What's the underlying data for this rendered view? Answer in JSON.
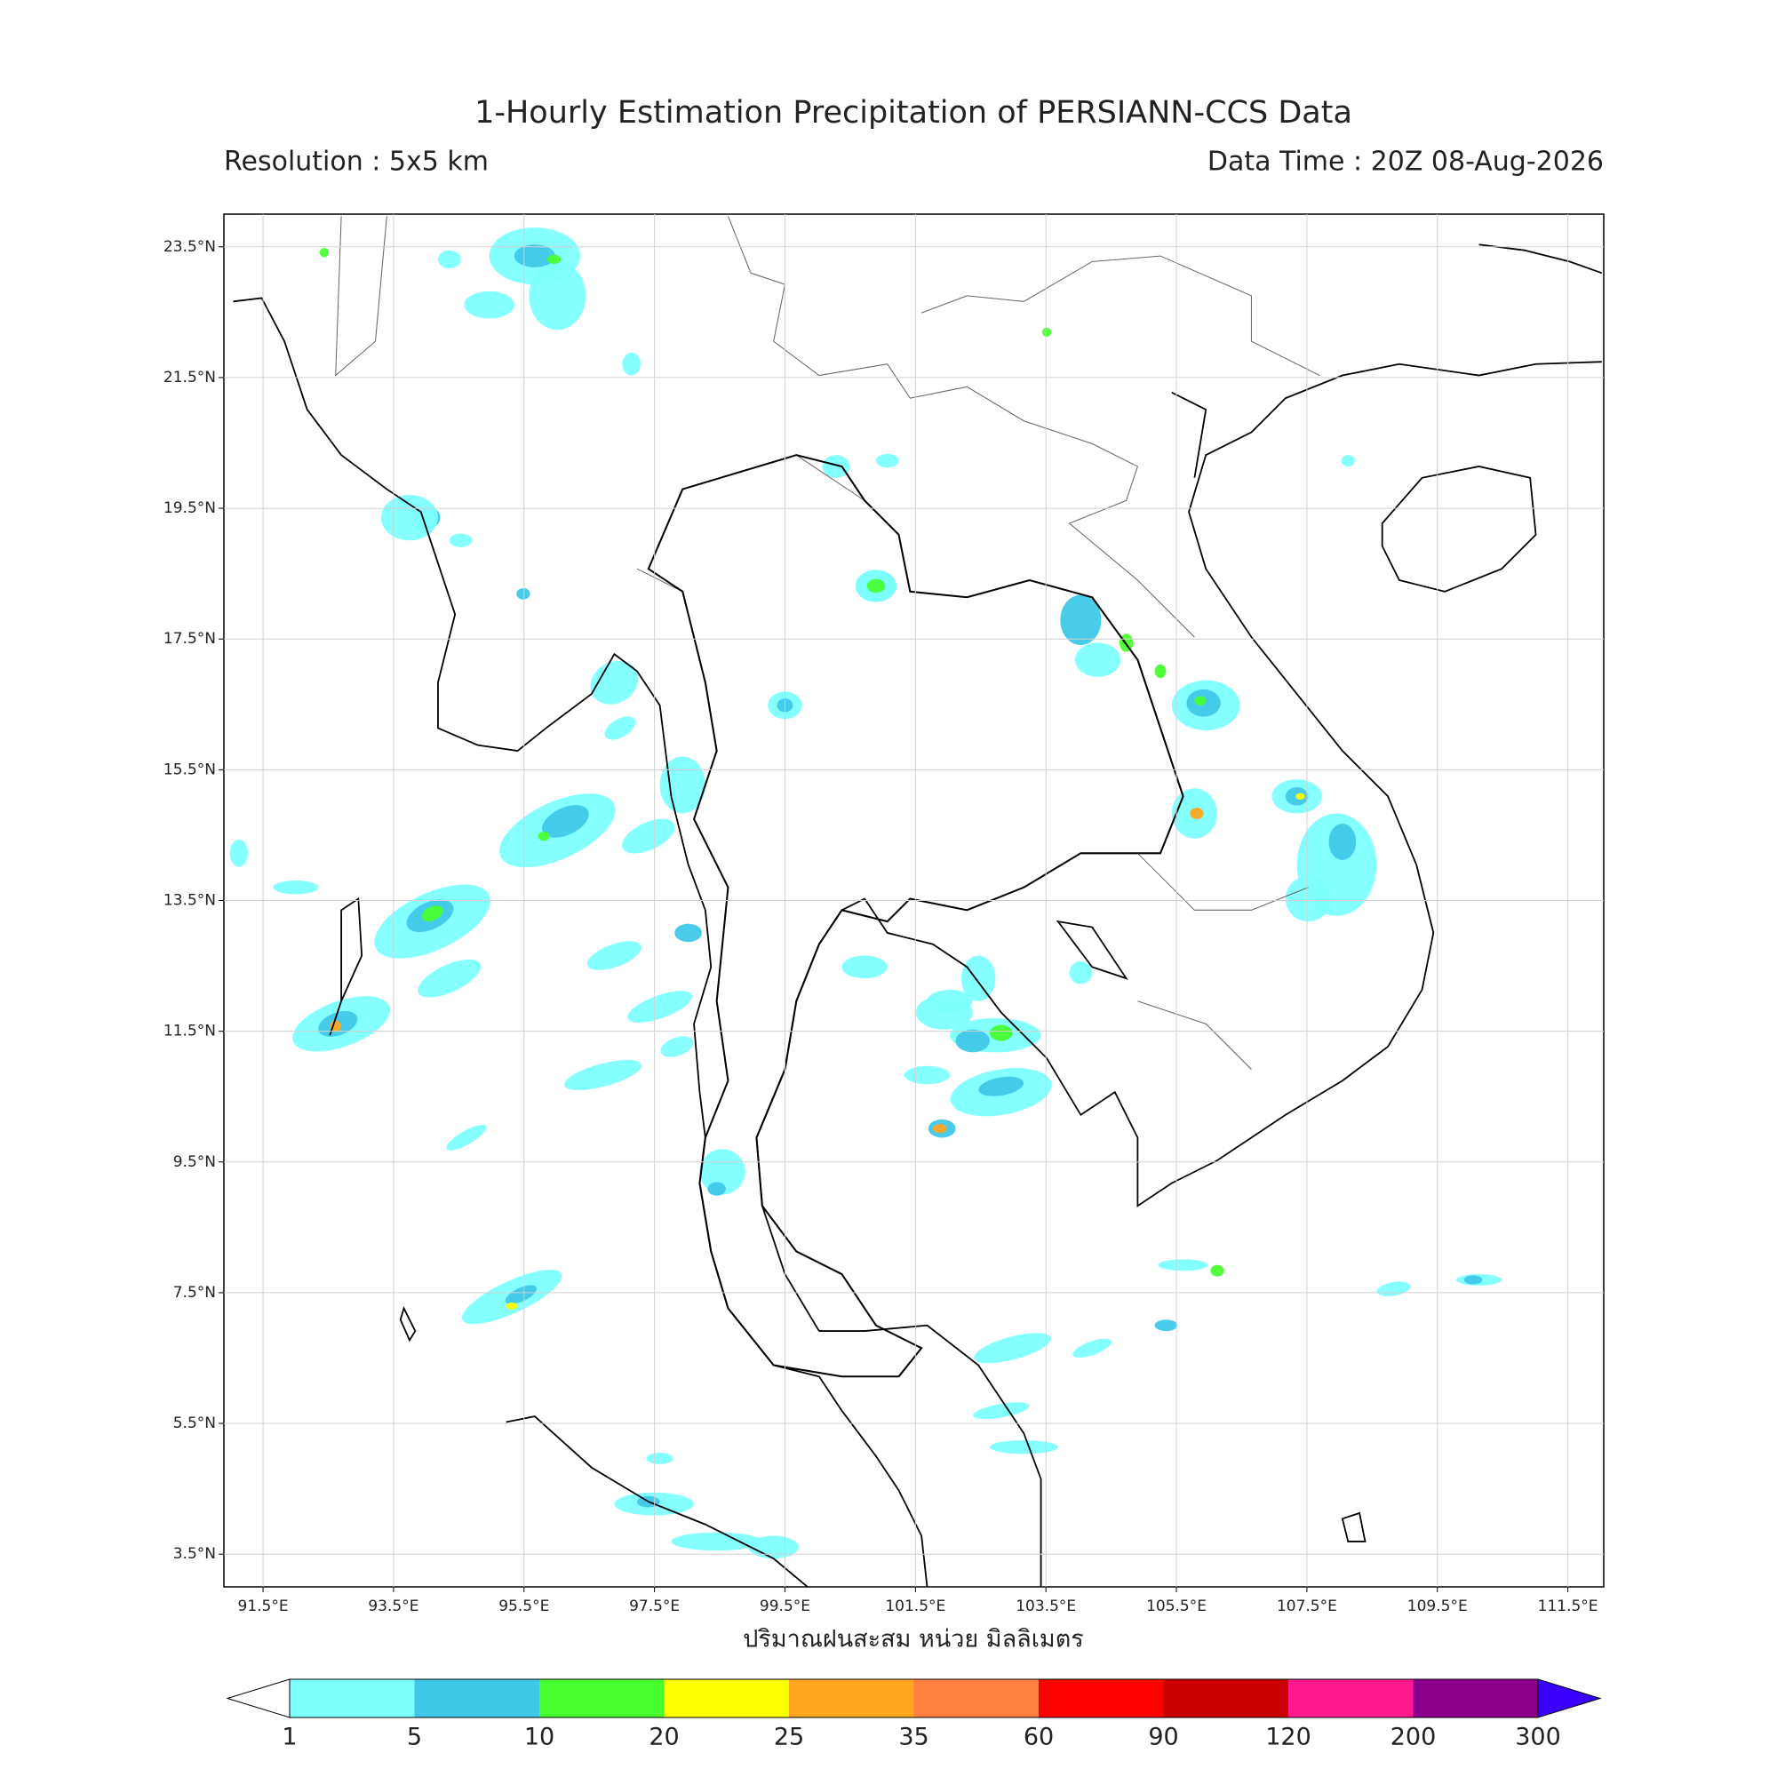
{
  "map": {
    "title": "1-Hourly Estimation Precipitation of PERSIANN-CCS Data",
    "resolution": "Resolution : 5x5 km",
    "data_time": "Data Time : 20Z 08-Aug-2026",
    "xlabel": "ปริมาณฝนสะสม หน่วย มิลลิเมตร",
    "xlim": [
      90.9,
      112.05
    ],
    "ylim": [
      3.0,
      24.0
    ],
    "grid": true,
    "lon_ticks": [
      {
        "value": 91.5,
        "label": "91.5°E"
      },
      {
        "value": 93.5,
        "label": "93.5°E"
      },
      {
        "value": 95.5,
        "label": "95.5°E"
      },
      {
        "value": 97.5,
        "label": "97.5°E"
      },
      {
        "value": 99.5,
        "label": "99.5°E"
      },
      {
        "value": 101.5,
        "label": "101.5°E"
      },
      {
        "value": 103.5,
        "label": "103.5°E"
      },
      {
        "value": 105.5,
        "label": "105.5°E"
      },
      {
        "value": 107.5,
        "label": "107.5°E"
      },
      {
        "value": 109.5,
        "label": "109.5°E"
      },
      {
        "value": 111.5,
        "label": "111.5°E"
      }
    ],
    "lat_ticks": [
      {
        "value": 3.5,
        "label": "3.5°N"
      },
      {
        "value": 5.5,
        "label": "5.5°N"
      },
      {
        "value": 7.5,
        "label": "7.5°N"
      },
      {
        "value": 9.5,
        "label": "9.5°N"
      },
      {
        "value": 11.5,
        "label": "11.5°N"
      },
      {
        "value": 13.5,
        "label": "13.5°N"
      },
      {
        "value": 15.5,
        "label": "15.5°N"
      },
      {
        "value": 17.5,
        "label": "17.5°N"
      },
      {
        "value": 19.5,
        "label": "19.5°N"
      },
      {
        "value": 21.5,
        "label": "21.5°N"
      },
      {
        "value": 23.5,
        "label": "23.5°N"
      }
    ],
    "colorbar": {
      "levels": [
        1,
        5,
        10,
        20,
        25,
        35,
        60,
        90,
        120,
        200,
        300
      ],
      "colors": [
        "#80ffff",
        "#40c8e8",
        "#48ff30",
        "#ffff00",
        "#ffa520",
        "#ff8040",
        "#ff0000",
        "#c80000",
        "#ff1890",
        "#8b008b"
      ],
      "under_color": "#ffffff",
      "over_color": "#3a00ff"
    }
  }
}
